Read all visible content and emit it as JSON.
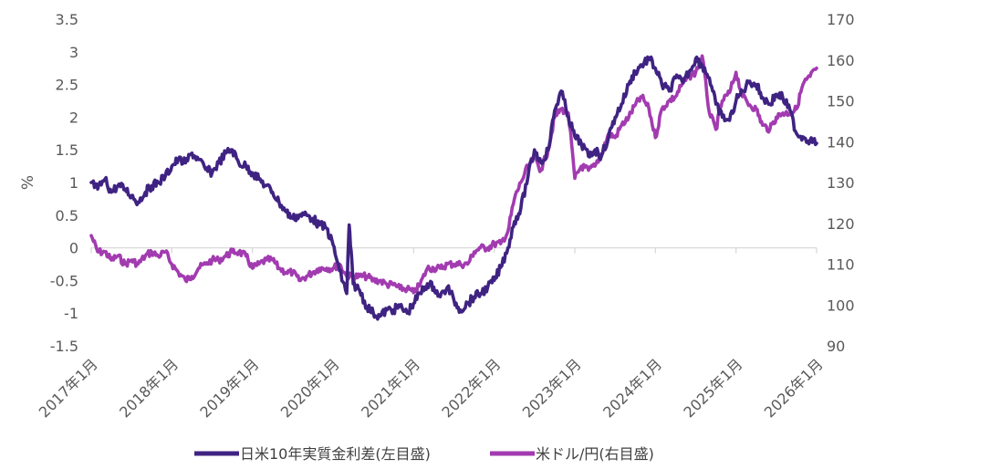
{
  "chart_data": {
    "type": "line",
    "title": "",
    "xlabel": "",
    "ylabel_left": "%",
    "ylabel_right": "",
    "ylim_left": [
      -1.5,
      3.5
    ],
    "ylim_right": [
      90,
      170
    ],
    "y_left_ticks": [
      "3.5",
      "3",
      "2.5",
      "2",
      "1.5",
      "1",
      "0.5",
      "0",
      "-0.5",
      "-1",
      "-1.5"
    ],
    "y_right_ticks": [
      "170",
      "160",
      "150",
      "140",
      "130",
      "120",
      "110",
      "100",
      "90"
    ],
    "x_tick_labels": [
      "2017年1月",
      "2018年1月",
      "2019年1月",
      "2020年1月",
      "2021年1月",
      "2022年1月",
      "2023年1月",
      "2024年1月",
      "2025年1月",
      "2026年1月"
    ],
    "x_range": [
      2017.0,
      2026.0
    ],
    "grid": false,
    "legend_position": "bottom",
    "series": [
      {
        "name": "日米10年実質金利差(左目盛)",
        "axis": "left",
        "color": "#3f2382",
        "x": [
          2017.0,
          2017.08,
          2017.17,
          2017.25,
          2017.33,
          2017.42,
          2017.5,
          2017.58,
          2017.67,
          2017.75,
          2017.83,
          2017.92,
          2018.0,
          2018.08,
          2018.17,
          2018.25,
          2018.33,
          2018.42,
          2018.5,
          2018.58,
          2018.67,
          2018.75,
          2018.83,
          2018.92,
          2019.0,
          2019.08,
          2019.17,
          2019.25,
          2019.33,
          2019.42,
          2019.5,
          2019.58,
          2019.67,
          2019.75,
          2019.83,
          2019.92,
          2020.0,
          2020.08,
          2020.17,
          2020.2,
          2020.25,
          2020.33,
          2020.42,
          2020.5,
          2020.58,
          2020.67,
          2020.75,
          2020.83,
          2020.92,
          2021.0,
          2021.08,
          2021.17,
          2021.25,
          2021.33,
          2021.42,
          2021.5,
          2021.58,
          2021.67,
          2021.75,
          2021.83,
          2021.92,
          2022.0,
          2022.08,
          2022.17,
          2022.25,
          2022.33,
          2022.42,
          2022.5,
          2022.58,
          2022.67,
          2022.75,
          2022.83,
          2022.92,
          2023.0,
          2023.08,
          2023.17,
          2023.25,
          2023.33,
          2023.42,
          2023.5,
          2023.58,
          2023.67,
          2023.75,
          2023.83,
          2023.92,
          2024.0,
          2024.08,
          2024.17,
          2024.25,
          2024.33,
          2024.42,
          2024.5,
          2024.58,
          2024.67,
          2024.75,
          2024.83,
          2024.92,
          2025.0,
          2025.08,
          2025.17,
          2025.25,
          2025.33,
          2025.42,
          2025.5,
          2025.58,
          2025.67,
          2025.75,
          2025.83,
          2025.92,
          2026.0
        ],
        "values": [
          1.0,
          0.9,
          1.05,
          0.85,
          0.95,
          0.9,
          0.8,
          0.7,
          0.85,
          0.95,
          1.0,
          1.1,
          1.25,
          1.35,
          1.3,
          1.45,
          1.35,
          1.2,
          1.15,
          1.3,
          1.45,
          1.5,
          1.3,
          1.25,
          1.15,
          1.05,
          0.95,
          0.85,
          0.7,
          0.55,
          0.45,
          0.5,
          0.5,
          0.45,
          0.35,
          0.3,
          0.05,
          -0.35,
          -0.7,
          0.35,
          -0.55,
          -0.65,
          -0.9,
          -1.0,
          -1.05,
          -0.95,
          -0.95,
          -0.9,
          -1.0,
          -0.85,
          -0.7,
          -0.55,
          -0.6,
          -0.75,
          -0.6,
          -0.8,
          -0.95,
          -0.85,
          -0.75,
          -0.7,
          -0.6,
          -0.5,
          -0.3,
          0.0,
          0.4,
          0.6,
          1.1,
          1.5,
          1.3,
          1.5,
          2.1,
          2.4,
          2.0,
          1.7,
          1.6,
          1.4,
          1.5,
          1.4,
          1.7,
          2.0,
          2.2,
          2.5,
          2.7,
          2.8,
          2.9,
          2.75,
          2.5,
          2.4,
          2.6,
          2.55,
          2.7,
          2.9,
          2.8,
          2.6,
          2.2,
          2.0,
          1.95,
          2.25,
          2.4,
          2.55,
          2.5,
          2.3,
          2.2,
          2.35,
          2.3,
          2.1,
          1.75,
          1.7,
          1.65,
          1.6
        ]
      },
      {
        "name": "米ドル/円(右目盛)",
        "axis": "right",
        "color": "#a23bb0",
        "x": [
          2017.0,
          2017.08,
          2017.17,
          2017.25,
          2017.33,
          2017.42,
          2017.5,
          2017.58,
          2017.67,
          2017.75,
          2017.83,
          2017.92,
          2018.0,
          2018.08,
          2018.17,
          2018.25,
          2018.33,
          2018.42,
          2018.5,
          2018.58,
          2018.67,
          2018.75,
          2018.83,
          2018.92,
          2019.0,
          2019.08,
          2019.17,
          2019.25,
          2019.33,
          2019.42,
          2019.5,
          2019.58,
          2019.67,
          2019.75,
          2019.83,
          2019.92,
          2020.0,
          2020.08,
          2020.17,
          2020.25,
          2020.33,
          2020.42,
          2020.5,
          2020.58,
          2020.67,
          2020.75,
          2020.83,
          2020.92,
          2021.0,
          2021.08,
          2021.17,
          2021.25,
          2021.33,
          2021.42,
          2021.5,
          2021.58,
          2021.67,
          2021.75,
          2021.83,
          2021.92,
          2022.0,
          2022.08,
          2022.17,
          2022.25,
          2022.33,
          2022.42,
          2022.5,
          2022.58,
          2022.67,
          2022.75,
          2022.83,
          2022.92,
          2023.0,
          2023.08,
          2023.17,
          2023.25,
          2023.33,
          2023.42,
          2023.5,
          2023.58,
          2023.67,
          2023.75,
          2023.83,
          2023.92,
          2024.0,
          2024.08,
          2024.17,
          2024.25,
          2024.33,
          2024.42,
          2024.5,
          2024.58,
          2024.67,
          2024.75,
          2024.83,
          2024.92,
          2025.0,
          2025.08,
          2025.17,
          2025.25,
          2025.33,
          2025.42,
          2025.5,
          2025.58,
          2025.67,
          2025.75,
          2025.83,
          2025.92,
          2026.0
        ],
        "values": [
          117,
          113,
          113,
          111,
          112,
          110,
          111,
          110,
          112,
          113,
          112,
          113,
          110,
          108,
          106,
          107,
          109,
          110,
          111,
          111,
          112,
          113,
          113,
          112,
          109,
          110,
          111,
          111,
          109,
          108,
          108,
          106,
          107,
          108,
          109,
          109,
          109,
          110,
          107,
          107,
          107,
          107,
          106,
          106,
          105,
          105,
          104,
          104,
          103,
          105,
          109,
          109,
          109,
          110,
          110,
          110,
          110,
          113,
          114,
          114,
          115,
          115,
          118,
          126,
          130,
          134,
          136,
          133,
          138,
          146,
          148,
          147,
          131,
          134,
          133,
          134,
          137,
          142,
          141,
          144,
          146,
          149,
          151,
          148,
          141,
          148,
          150,
          151,
          154,
          156,
          157,
          161,
          147,
          143,
          150,
          152,
          157,
          151,
          149,
          148,
          144,
          143,
          146,
          147,
          147,
          148,
          154,
          156,
          158
        ]
      }
    ]
  }
}
